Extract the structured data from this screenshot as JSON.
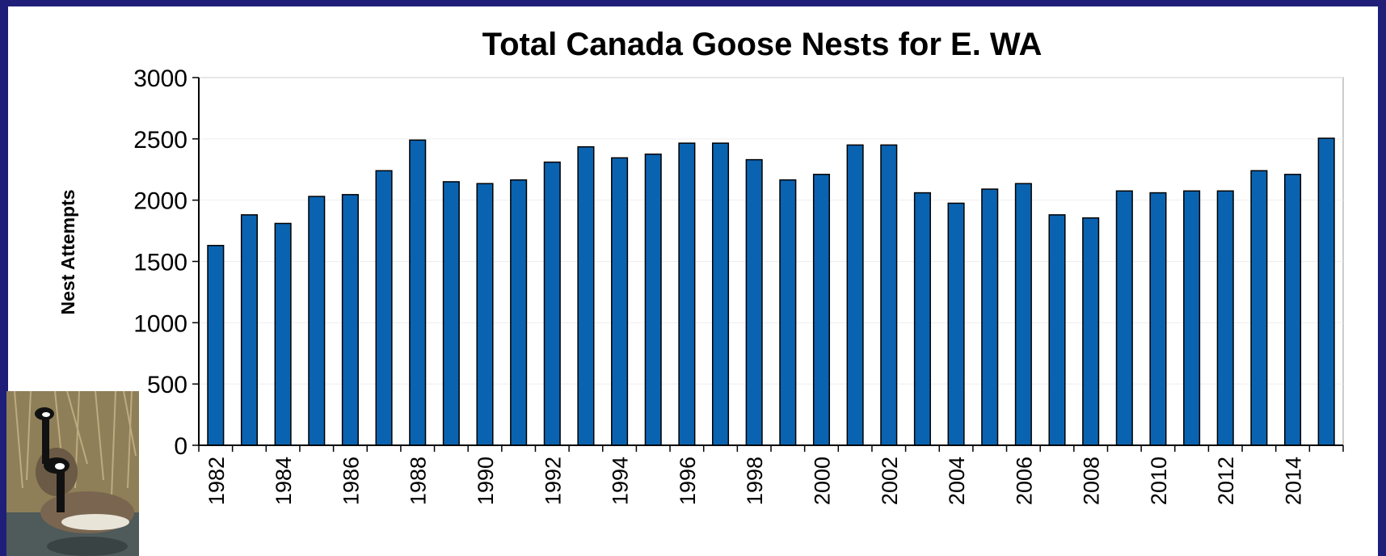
{
  "chart_data": {
    "type": "bar",
    "title": "Total Canada Goose Nests for E. WA",
    "xlabel": "",
    "ylabel": "Nest Attempts",
    "ylim": [
      0,
      3000
    ],
    "yticks": [
      0,
      500,
      1000,
      1500,
      2000,
      2500,
      3000
    ],
    "categories": [
      "1982",
      "1983",
      "1984",
      "1985",
      "1986",
      "1987",
      "1988",
      "1989",
      "1990",
      "1991",
      "1992",
      "1993",
      "1994",
      "1995",
      "1996",
      "1997",
      "1998",
      "1999",
      "2000",
      "2001",
      "2002",
      "2003",
      "2004",
      "2005",
      "2006",
      "2007",
      "2008",
      "2009",
      "2010",
      "2011",
      "2012",
      "2013",
      "2014",
      "2015"
    ],
    "xtick_labels": [
      "1982",
      "",
      "1984",
      "",
      "1986",
      "",
      "1988",
      "",
      "1990",
      "",
      "1992",
      "",
      "1994",
      "",
      "1996",
      "",
      "1998",
      "",
      "2000",
      "",
      "2002",
      "",
      "2004",
      "",
      "2006",
      "",
      "2008",
      "",
      "2010",
      "",
      "2012",
      "",
      "2014",
      ""
    ],
    "values": [
      1630,
      1880,
      1810,
      2030,
      2045,
      2240,
      2490,
      2150,
      2135,
      2165,
      2310,
      2435,
      2345,
      2375,
      2465,
      2465,
      2330,
      2165,
      2210,
      2450,
      2450,
      2060,
      1975,
      2090,
      2135,
      1880,
      1855,
      2075,
      2060,
      2075,
      2075,
      2240,
      2210,
      2505
    ],
    "bar_color": "#0a63b0",
    "grid": true,
    "legend": "none"
  },
  "photo": {
    "subject": "canada-geese-photo"
  }
}
